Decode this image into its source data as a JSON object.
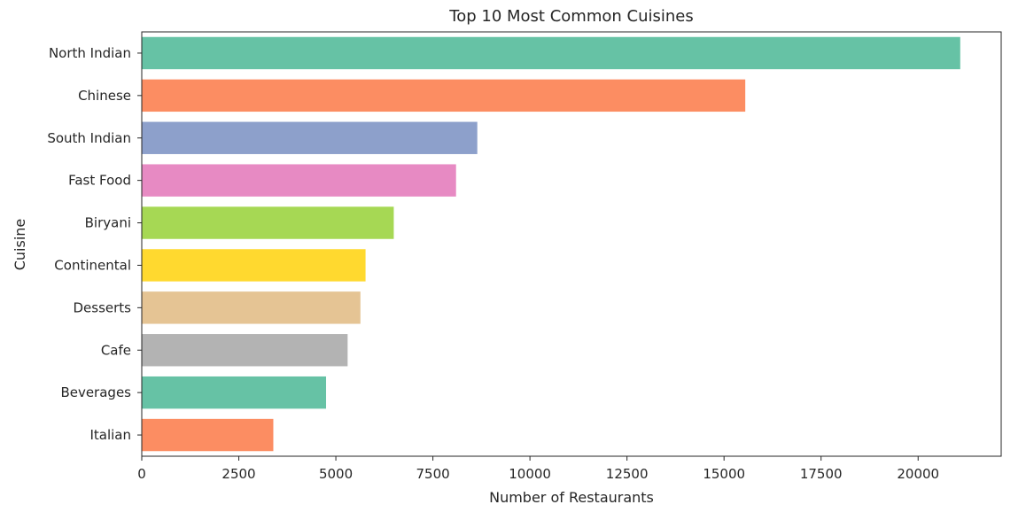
{
  "chart_data": {
    "type": "bar",
    "orientation": "horizontal",
    "title": "Top 10 Most Common Cuisines",
    "xlabel": "Number of Restaurants",
    "ylabel": "Cuisine",
    "categories": [
      "North Indian",
      "Chinese",
      "South Indian",
      "Fast Food",
      "Biryani",
      "Continental",
      "Desserts",
      "Cafe",
      "Beverages",
      "Italian"
    ],
    "values": [
      21085,
      15547,
      8644,
      8096,
      6492,
      5765,
      5633,
      5303,
      4748,
      3389
    ],
    "colors": [
      "#66c2a5",
      "#fc8d62",
      "#8da0cb",
      "#e78ac3",
      "#a6d854",
      "#ffd92f",
      "#e5c494",
      "#b3b3b3",
      "#66c2a5",
      "#fc8d62"
    ],
    "xlim": [
      0,
      22140
    ],
    "xticks": [
      0,
      2500,
      5000,
      7500,
      10000,
      12500,
      15000,
      17500,
      20000
    ],
    "xtick_labels": [
      "0",
      "2500",
      "5000",
      "7500",
      "10000",
      "12500",
      "15000",
      "17500",
      "20000"
    ],
    "grid": false,
    "legend": "none"
  }
}
